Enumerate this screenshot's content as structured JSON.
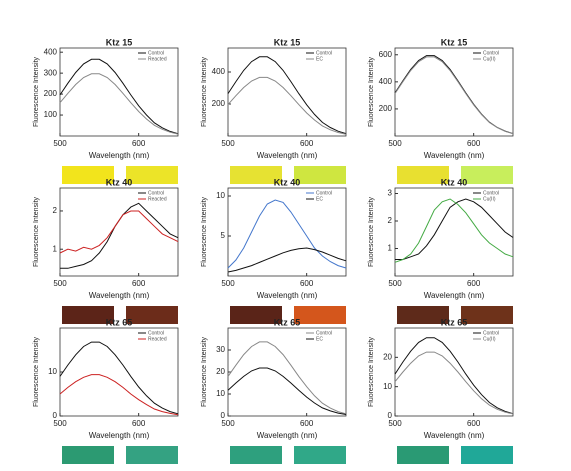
{
  "chart_data": [
    {
      "type": "line",
      "title": "Ktz 15",
      "x_label": "Wavelength (nm)",
      "y_label": "Fluorescence Intensity",
      "x": [
        500,
        510,
        520,
        530,
        540,
        550,
        560,
        570,
        580,
        590,
        600,
        610,
        620,
        630,
        640,
        650
      ],
      "xlim": [
        500,
        650
      ],
      "xticks": [
        500,
        600
      ],
      "ylim": [
        0,
        420
      ],
      "yticks": [
        100,
        200,
        300,
        400
      ],
      "series": [
        {
          "name": "Control",
          "color": "#111111",
          "values": [
            196,
            252,
            303,
            344,
            366,
            366,
            344,
            303,
            252,
            196,
            144,
            100,
            63,
            39,
            22,
            11
          ]
        },
        {
          "name": "Reacted",
          "color": "#888888",
          "values": [
            159,
            204,
            246,
            279,
            297,
            297,
            279,
            246,
            204,
            159,
            117,
            81,
            51,
            32,
            18,
            9
          ]
        }
      ]
    },
    {
      "type": "line",
      "title": "Ktz 15",
      "x_label": "Wavelength (nm)",
      "y_label": "Fluorescence Intensity",
      "x": [
        500,
        510,
        520,
        530,
        540,
        550,
        560,
        570,
        580,
        590,
        600,
        610,
        620,
        630,
        640,
        650
      ],
      "xlim": [
        500,
        650
      ],
      "xticks": [
        500,
        600
      ],
      "ylim": [
        0,
        550
      ],
      "yticks": [
        200,
        400
      ],
      "series": [
        {
          "name": "Control",
          "color": "#111111",
          "values": [
            265,
            340,
            410,
            465,
            495,
            495,
            465,
            410,
            340,
            265,
            195,
            135,
            85,
            53,
            30,
            15
          ]
        },
        {
          "name": "EC",
          "color": "#888888",
          "values": [
            196,
            252,
            303,
            344,
            366,
            366,
            344,
            303,
            252,
            196,
            144,
            100,
            63,
            39,
            22,
            11
          ]
        }
      ]
    },
    {
      "type": "line",
      "title": "Ktz 15",
      "x_label": "Wavelength (nm)",
      "y_label": "Fluorescence Intensity",
      "x": [
        500,
        510,
        520,
        530,
        540,
        550,
        560,
        570,
        580,
        590,
        600,
        610,
        620,
        630,
        640,
        650
      ],
      "xlim": [
        500,
        650
      ],
      "xticks": [
        500,
        600
      ],
      "ylim": [
        0,
        650
      ],
      "yticks": [
        200,
        400,
        600
      ],
      "series": [
        {
          "name": "Control",
          "color": "#111111",
          "values": [
            318,
            408,
            492,
            558,
            594,
            594,
            558,
            492,
            408,
            318,
            234,
            162,
            102,
            63,
            36,
            18
          ]
        },
        {
          "name": "Cu(II)",
          "color": "#888888",
          "values": [
            313,
            401,
            484,
            549,
            584,
            584,
            549,
            484,
            401,
            313,
            230,
            159,
            100,
            62,
            35,
            18
          ]
        }
      ]
    },
    {
      "type": "line",
      "title": "Ktz 40",
      "x_label": "Wavelength (nm)",
      "y_label": "Fluorescence Intensity",
      "x": [
        500,
        510,
        520,
        530,
        540,
        550,
        560,
        570,
        580,
        590,
        600,
        610,
        620,
        630,
        640,
        650
      ],
      "xlim": [
        500,
        650
      ],
      "xticks": [
        500,
        600
      ],
      "ylim": [
        0.3,
        2.6
      ],
      "yticks": [
        1,
        2
      ],
      "series": [
        {
          "name": "Control",
          "color": "#111111",
          "values": [
            0.5,
            0.5,
            0.55,
            0.6,
            0.7,
            0.9,
            1.2,
            1.6,
            1.9,
            2.1,
            2.2,
            2.0,
            1.8,
            1.6,
            1.4,
            1.3
          ]
        },
        {
          "name": "Reacted",
          "color": "#cc2222",
          "values": [
            0.9,
            1.0,
            0.95,
            1.05,
            1.0,
            1.1,
            1.3,
            1.6,
            1.9,
            2.0,
            2.0,
            1.8,
            1.6,
            1.4,
            1.3,
            1.2
          ]
        }
      ]
    },
    {
      "type": "line",
      "title": "Ktz 40",
      "x_label": "Wavelength (nm)",
      "y_label": "Fluorescence Intensity",
      "x": [
        500,
        510,
        520,
        530,
        540,
        550,
        560,
        570,
        580,
        590,
        600,
        610,
        620,
        630,
        640,
        650
      ],
      "xlim": [
        500,
        650
      ],
      "xticks": [
        500,
        600
      ],
      "ylim": [
        0,
        11
      ],
      "yticks": [
        5,
        10
      ],
      "series": [
        {
          "name": "Control",
          "color": "#4477cc",
          "values": [
            1,
            2,
            3.5,
            5.5,
            7.5,
            9,
            9.5,
            9.2,
            8,
            6.5,
            5,
            3.5,
            2.5,
            1.8,
            1.3,
            1
          ]
        },
        {
          "name": "EC",
          "color": "#111111",
          "values": [
            0.5,
            0.7,
            1,
            1.3,
            1.7,
            2.1,
            2.5,
            2.9,
            3.2,
            3.4,
            3.5,
            3.3,
            3,
            2.6,
            2.2,
            1.9
          ]
        }
      ]
    },
    {
      "type": "line",
      "title": "Ktz 40",
      "x_label": "Wavelength (nm)",
      "y_label": "Fluorescence Intensity",
      "x": [
        500,
        510,
        520,
        530,
        540,
        550,
        560,
        570,
        580,
        590,
        600,
        610,
        620,
        630,
        640,
        650
      ],
      "xlim": [
        500,
        650
      ],
      "xticks": [
        500,
        600
      ],
      "ylim": [
        0,
        3.2
      ],
      "yticks": [
        1,
        2,
        3
      ],
      "series": [
        {
          "name": "Control",
          "color": "#111111",
          "values": [
            0.6,
            0.6,
            0.7,
            0.8,
            1.1,
            1.5,
            2.0,
            2.5,
            2.7,
            2.8,
            2.7,
            2.5,
            2.2,
            1.9,
            1.6,
            1.4
          ]
        },
        {
          "name": "Cu(II)",
          "color": "#44aa44",
          "values": [
            0.5,
            0.6,
            0.8,
            1.2,
            1.8,
            2.4,
            2.7,
            2.8,
            2.6,
            2.3,
            1.9,
            1.5,
            1.2,
            1.0,
            0.8,
            0.7
          ]
        }
      ]
    },
    {
      "type": "line",
      "title": "Ktz 65",
      "x_label": "Wavelength (nm)",
      "y_label": "Fluorescence Intensity",
      "x": [
        500,
        510,
        520,
        530,
        540,
        550,
        560,
        570,
        580,
        590,
        600,
        610,
        620,
        630,
        640,
        650
      ],
      "xlim": [
        500,
        650
      ],
      "xticks": [
        500,
        600
      ],
      "ylim": [
        0,
        20
      ],
      "yticks": [
        0,
        10
      ],
      "series": [
        {
          "name": "Control",
          "color": "#111111",
          "values": [
            9,
            11.6,
            13.9,
            15.8,
            16.8,
            16.8,
            15.8,
            13.9,
            11.6,
            9,
            6.6,
            4.6,
            2.9,
            1.8,
            1,
            0.5
          ]
        },
        {
          "name": "Reacted",
          "color": "#cc2222",
          "values": [
            5,
            6.5,
            7.8,
            8.8,
            9.4,
            9.4,
            8.8,
            7.8,
            6.5,
            5,
            3.7,
            2.6,
            1.6,
            1,
            0.6,
            0.3
          ]
        }
      ]
    },
    {
      "type": "line",
      "title": "Ktz 65",
      "x_label": "Wavelength (nm)",
      "y_label": "Fluorescence Intensity",
      "x": [
        500,
        510,
        520,
        530,
        540,
        550,
        560,
        570,
        580,
        590,
        600,
        610,
        620,
        630,
        640,
        650
      ],
      "xlim": [
        500,
        650
      ],
      "xticks": [
        500,
        600
      ],
      "ylim": [
        0,
        40
      ],
      "yticks": [
        0,
        10,
        20,
        30
      ],
      "series": [
        {
          "name": "Control",
          "color": "#888888",
          "values": [
            18,
            23.1,
            27.9,
            31.6,
            33.7,
            33.7,
            31.6,
            27.9,
            23.1,
            18,
            13.3,
            9.2,
            5.8,
            3.6,
            2,
            1
          ]
        },
        {
          "name": "EC",
          "color": "#111111",
          "values": [
            11.7,
            15,
            18,
            20.5,
            21.8,
            21.8,
            20.5,
            18,
            15,
            11.7,
            8.6,
            5.9,
            3.7,
            2.3,
            1.3,
            0.7
          ]
        }
      ]
    },
    {
      "type": "line",
      "title": "Ktz 65",
      "x_label": "Wavelength (nm)",
      "y_label": "Fluorescence Intensity",
      "x": [
        500,
        510,
        520,
        530,
        540,
        550,
        560,
        570,
        580,
        590,
        600,
        610,
        620,
        630,
        640,
        650
      ],
      "xlim": [
        500,
        650
      ],
      "xticks": [
        500,
        600
      ],
      "ylim": [
        0,
        30
      ],
      "yticks": [
        0,
        10,
        20
      ],
      "series": [
        {
          "name": "Control",
          "color": "#111111",
          "values": [
            14.3,
            18.4,
            22.1,
            25.1,
            26.7,
            26.7,
            25.1,
            22.1,
            18.4,
            14.3,
            10.5,
            7.3,
            4.6,
            2.8,
            1.6,
            0.8
          ]
        },
        {
          "name": "Cu(II)",
          "color": "#888888",
          "values": [
            11.7,
            15,
            18,
            20.5,
            21.8,
            21.8,
            20.5,
            18,
            15,
            11.7,
            8.6,
            5.9,
            3.7,
            2.3,
            1.3,
            0.7
          ]
        }
      ]
    }
  ]
}
